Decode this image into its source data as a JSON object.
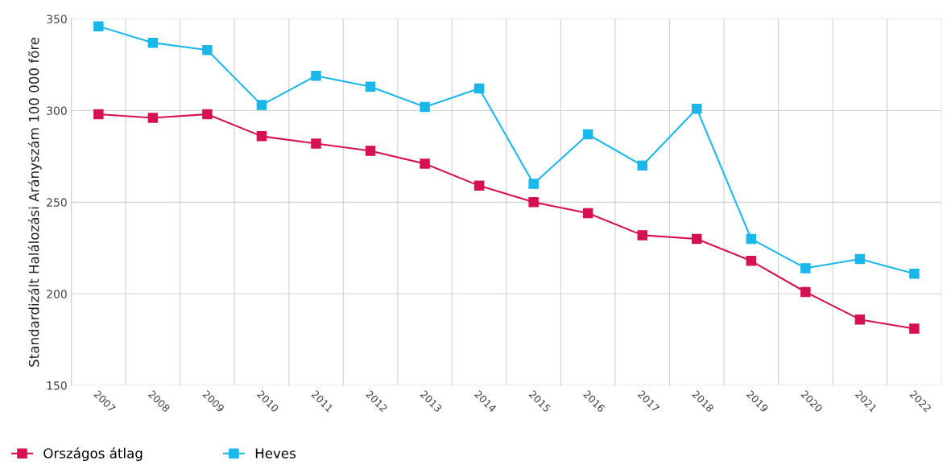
{
  "chart_data": {
    "type": "line",
    "ylabel": "Standardizált Halálozási Arányszám 100 000 főre",
    "categories": [
      "2007",
      "2008",
      "2009",
      "2010",
      "2011",
      "2012",
      "2013",
      "2014",
      "2015",
      "2016",
      "2017",
      "2018",
      "2019",
      "2020",
      "2021",
      "2022"
    ],
    "series": [
      {
        "name": "Országos átlag",
        "color": "#d6114f",
        "values": [
          298,
          296,
          298,
          286,
          282,
          278,
          271,
          259,
          250,
          244,
          232,
          230,
          218,
          201,
          186,
          181
        ]
      },
      {
        "name": "Heves",
        "color": "#1ab7ea",
        "values": [
          346,
          337,
          333,
          303,
          319,
          313,
          302,
          312,
          260,
          287,
          270,
          301,
          230,
          214,
          219,
          211
        ]
      }
    ],
    "ylim": [
      150,
      350
    ],
    "yticks": [
      150,
      200,
      250,
      300,
      350
    ],
    "grid": true,
    "legend": "bottom left",
    "marker": "square",
    "line_style": "solid"
  }
}
